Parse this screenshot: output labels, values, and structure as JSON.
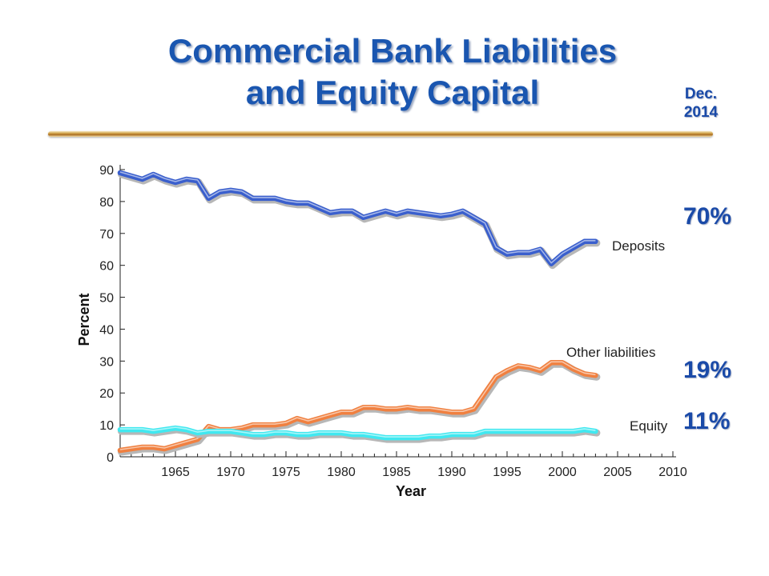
{
  "page": {
    "title_line1": "Commercial Bank Liabilities",
    "title_line2": "and Equity Capital",
    "date_line1": "Dec.",
    "date_line2": "2014",
    "callouts": {
      "deposits": "70%",
      "other": "19%",
      "equity": "11%"
    }
  },
  "chart_data": {
    "type": "line",
    "xlabel": "Year",
    "ylabel": "Percent",
    "xlim": [
      1960,
      2010
    ],
    "ylim": [
      0,
      90
    ],
    "x_ticks": [
      1965,
      1970,
      1975,
      1980,
      1985,
      1990,
      1995,
      2000,
      2005,
      2010
    ],
    "y_ticks": [
      0,
      10,
      20,
      30,
      40,
      50,
      60,
      70,
      80,
      90
    ],
    "grid": false,
    "series": [
      {
        "name": "Deposits",
        "color": "#3a5fcd",
        "x": [
          1960,
          1961,
          1962,
          1963,
          1964,
          1965,
          1966,
          1967,
          1968,
          1969,
          1970,
          1971,
          1972,
          1973,
          1974,
          1975,
          1976,
          1977,
          1978,
          1979,
          1980,
          1981,
          1982,
          1983,
          1984,
          1985,
          1986,
          1987,
          1988,
          1989,
          1990,
          1991,
          1992,
          1993,
          1994,
          1995,
          1996,
          1997,
          1998,
          1999,
          2000,
          2001,
          2002,
          2003
        ],
        "values": [
          89,
          88,
          87,
          88.5,
          87,
          86,
          87,
          86.5,
          81,
          83,
          83.5,
          83,
          81,
          81,
          81,
          80,
          79.5,
          79.5,
          78,
          76.5,
          77,
          77,
          75,
          76,
          77,
          76,
          77,
          76.5,
          76,
          75.5,
          76,
          77,
          75,
          73,
          65.5,
          63.5,
          64,
          64,
          65,
          60.5,
          63.5,
          65.5,
          67.5,
          67.5
        ]
      },
      {
        "name": "Other liabilities",
        "color": "#f08040",
        "x": [
          1960,
          1961,
          1962,
          1963,
          1964,
          1965,
          1966,
          1967,
          1968,
          1969,
          1970,
          1971,
          1972,
          1973,
          1974,
          1975,
          1976,
          1977,
          1978,
          1979,
          1980,
          1981,
          1982,
          1983,
          1984,
          1985,
          1986,
          1987,
          1988,
          1989,
          1990,
          1991,
          1992,
          1993,
          1994,
          1995,
          1996,
          1997,
          1998,
          1999,
          2000,
          2001,
          2002,
          2003
        ],
        "values": [
          2,
          2.5,
          3,
          3,
          2.5,
          3.5,
          4.5,
          5.5,
          9.5,
          8.5,
          8.5,
          9,
          10,
          10,
          10,
          10.5,
          12,
          11,
          12,
          13,
          14,
          14,
          15.5,
          15.5,
          15,
          15,
          15.5,
          15,
          15,
          14.5,
          14,
          14,
          15,
          20,
          25,
          27,
          28.5,
          28,
          27,
          29.5,
          29.5,
          27.5,
          26,
          25.5
        ]
      },
      {
        "name": "Equity",
        "color": "#40e8f0",
        "x": [
          1960,
          1961,
          1962,
          1963,
          1964,
          1965,
          1966,
          1967,
          1968,
          1969,
          1970,
          1971,
          1972,
          1973,
          1974,
          1975,
          1976,
          1977,
          1978,
          1979,
          1980,
          1981,
          1982,
          1983,
          1984,
          1985,
          1986,
          1987,
          1988,
          1989,
          1990,
          1991,
          1992,
          1993,
          1994,
          1995,
          1996,
          1997,
          1998,
          1999,
          2000,
          2001,
          2002,
          2003
        ],
        "values": [
          8.5,
          8.5,
          8.5,
          8,
          8.5,
          9,
          8.5,
          7.5,
          8,
          8,
          8,
          7.5,
          7,
          7,
          7.5,
          7.5,
          7,
          7,
          7.5,
          7.5,
          7.5,
          7,
          7,
          6.5,
          6,
          6,
          6,
          6,
          6.5,
          6.5,
          7,
          7,
          7,
          8,
          8,
          8,
          8,
          8,
          8,
          8,
          8,
          8,
          8.5,
          8
        ]
      }
    ]
  }
}
